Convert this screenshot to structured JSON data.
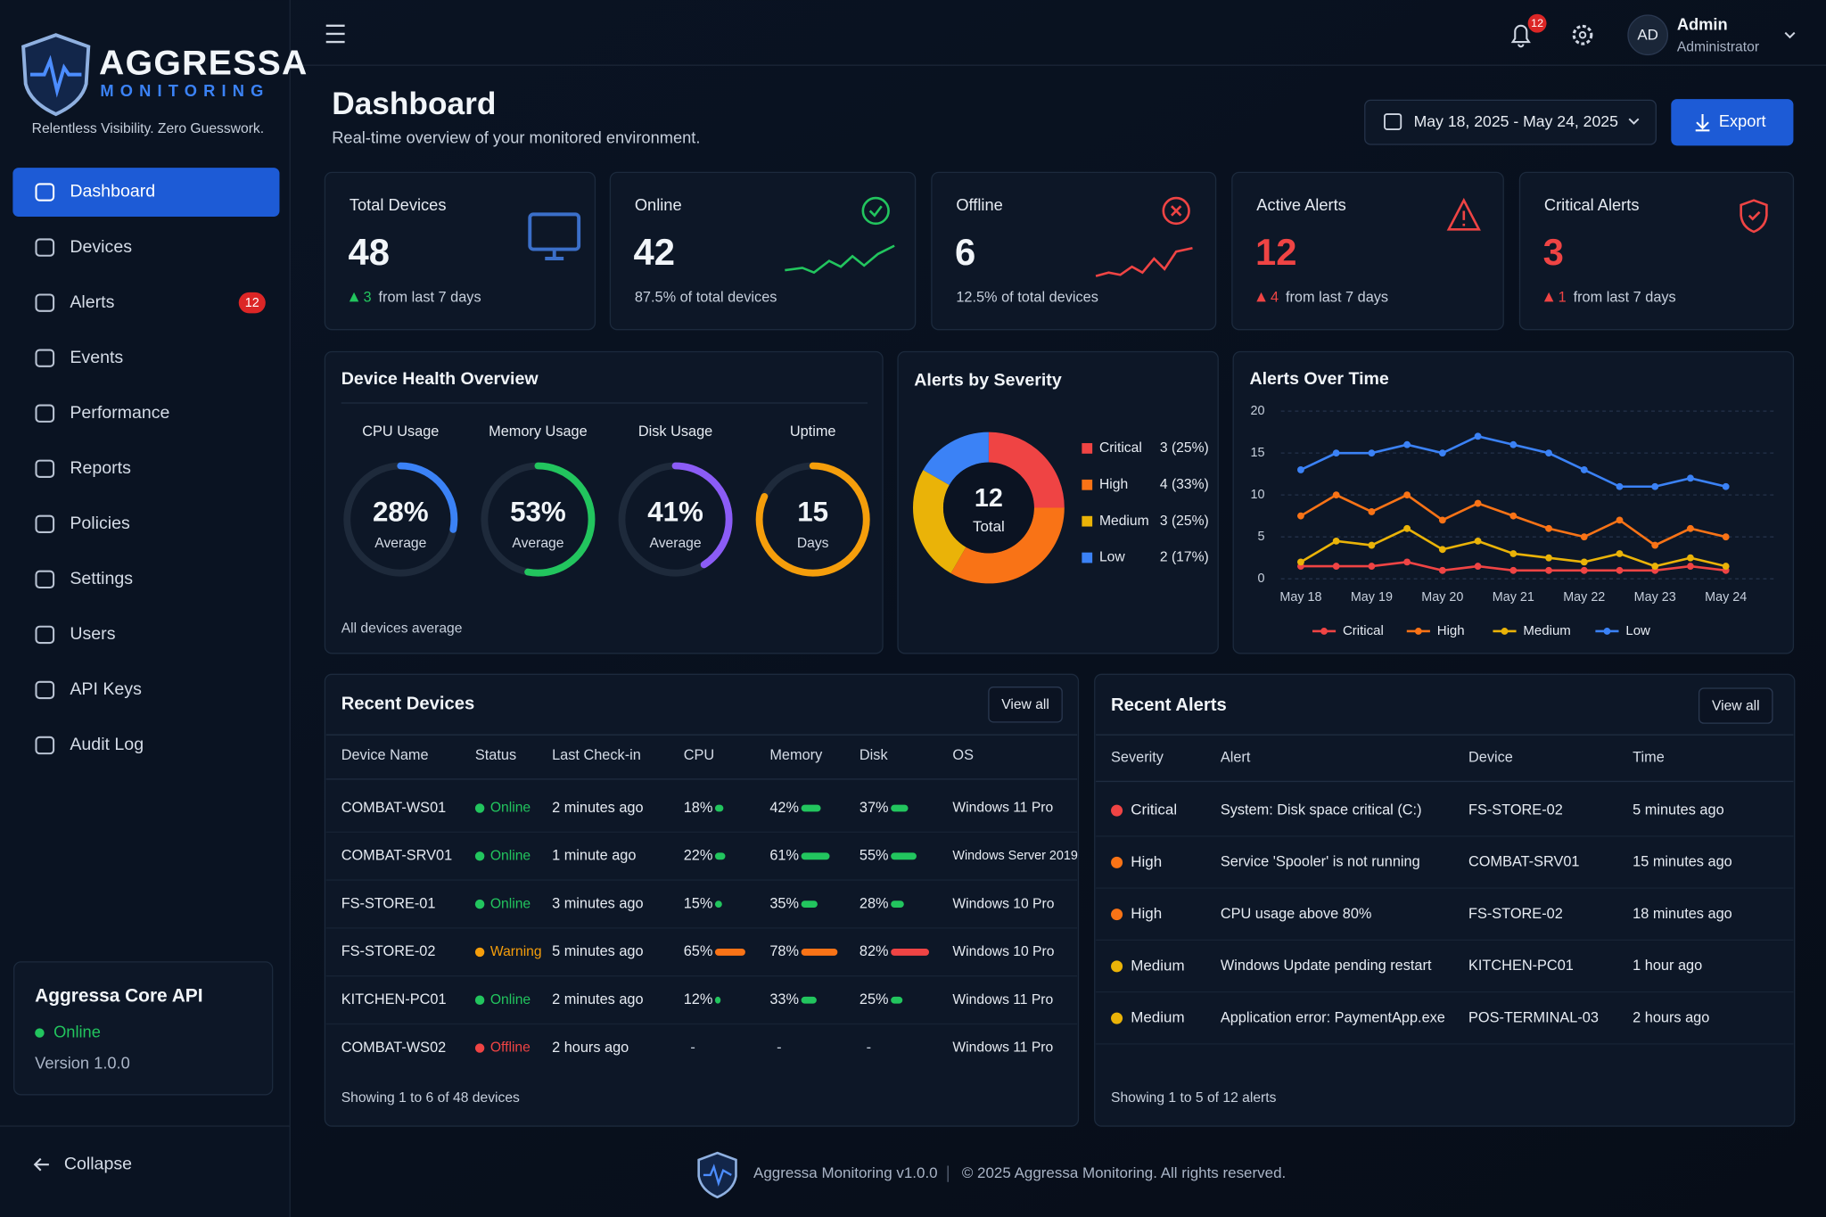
{
  "brand": {
    "name": "AGGRESSA",
    "sub": "MONITORING",
    "tagline": "Relentless Visibility. Zero Guesswork."
  },
  "nav": [
    {
      "label": "Dashboard",
      "active": true
    },
    {
      "label": "Devices"
    },
    {
      "label": "Alerts",
      "badge": 12
    },
    {
      "label": "Events"
    },
    {
      "label": "Performance"
    },
    {
      "label": "Reports"
    },
    {
      "label": "Policies"
    },
    {
      "label": "Settings"
    },
    {
      "label": "Users"
    },
    {
      "label": "API Keys"
    },
    {
      "label": "Audit Log"
    }
  ],
  "api": {
    "title": "Aggressa Core API",
    "status": "Online",
    "version": "Version 1.0.0"
  },
  "collapse": "Collapse",
  "header": {
    "notifications": 12,
    "user": {
      "initials": "AD",
      "name": "Admin",
      "role": "Administrator"
    }
  },
  "page": {
    "title": "Dashboard",
    "subtitle": "Real-time overview of your monitored environment.",
    "date_range": "May 18, 2025 - May 24, 2025",
    "export": "Export"
  },
  "stats": [
    {
      "label": "Total Devices",
      "value": 48,
      "delta": 3,
      "delta_color": "#22c55e",
      "note": "from last 7 days",
      "color": "#f1f5f9"
    },
    {
      "label": "Online",
      "value": 42,
      "note": "87.5% of total devices",
      "color": "#f1f5f9"
    },
    {
      "label": "Offline",
      "value": 6,
      "note": "12.5% of total devices",
      "color": "#f1f5f9"
    },
    {
      "label": "Active Alerts",
      "value": 12,
      "delta": 4,
      "delta_color": "#ef4444",
      "note": "from last 7 days",
      "color": "#ef4444"
    },
    {
      "label": "Critical Alerts",
      "value": 3,
      "delta": 1,
      "delta_color": "#ef4444",
      "note": "from last 7 days",
      "color": "#ef4444"
    }
  ],
  "health": {
    "title": "Device Health Overview",
    "footnote": "All devices average",
    "gauges": [
      {
        "label": "CPU Usage",
        "value": 28,
        "value_label": "28%",
        "unit": "Average",
        "color": "#3b82f6"
      },
      {
        "label": "Memory Usage",
        "value": 53,
        "value_label": "53%",
        "unit": "Average",
        "color": "#22c55e"
      },
      {
        "label": "Disk Usage",
        "value": 41,
        "value_label": "41%",
        "unit": "Average",
        "color": "#8b5cf6"
      },
      {
        "label": "Uptime",
        "value": 15,
        "unit": "Days",
        "color": "#f59e0b"
      }
    ]
  },
  "severity": {
    "title": "Alerts by Severity",
    "total": 12,
    "total_label": "Total",
    "slices": [
      {
        "name": "Critical",
        "value": 3,
        "value_label": "3 (25%)",
        "color": "#ef4444"
      },
      {
        "name": "High",
        "value": 4,
        "value_label": "4 (33%)",
        "color": "#f97316"
      },
      {
        "name": "Medium",
        "value": 3,
        "value_label": "3 (25%)",
        "color": "#eab308"
      },
      {
        "name": "Low",
        "value": 2,
        "value_label": "2 (17%)",
        "color": "#3b82f6"
      }
    ]
  },
  "chart": {
    "type": "line",
    "title": "Alerts Over Time",
    "categories": [
      "May 18",
      null,
      "May 19",
      null,
      "May 20",
      null,
      "May 21",
      null,
      "May 22",
      null,
      "May 23",
      null,
      "May 24"
    ],
    "series": [
      {
        "name": "Critical",
        "color": "#ef4444",
        "values": [
          1.5,
          1.5,
          1.5,
          2,
          1,
          1.5,
          1,
          1,
          1,
          1,
          1,
          1.5,
          1
        ]
      },
      {
        "name": "High",
        "color": "#f97316",
        "values": [
          7.5,
          10,
          8,
          10,
          7,
          9,
          7.5,
          6,
          5,
          7,
          4,
          6,
          5
        ]
      },
      {
        "name": "Medium",
        "color": "#eab308",
        "values": [
          2,
          4.5,
          4,
          6,
          3.5,
          4.5,
          3,
          2.5,
          2,
          3,
          1.5,
          2.5,
          1.5
        ]
      },
      {
        "name": "Low",
        "color": "#3b82f6",
        "values": [
          13,
          15,
          15,
          16,
          15,
          17,
          16,
          15,
          13,
          11,
          11,
          12,
          11
        ]
      }
    ],
    "ylim": [
      0,
      20
    ],
    "yticks": [
      0,
      5,
      10,
      15,
      20
    ],
    "grid": true
  },
  "devices": {
    "title": "Recent Devices",
    "view_all": "View all",
    "bar_color": "#22c55e",
    "columns": [
      "Device Name",
      "Status",
      "Last Check-in",
      "CPU",
      "Memory",
      "Disk",
      "OS"
    ],
    "rows": [
      {
        "name": "COMBAT-WS01",
        "status": "Online",
        "status_color": "#22c55e",
        "checkin": "2 minutes ago",
        "cpu": {
          "value": 18,
          "label": "18%"
        },
        "memory": {
          "value": 42,
          "label": "42%"
        },
        "disk": {
          "value": 37,
          "label": "37%"
        },
        "os": "Windows 11 Pro"
      },
      {
        "name": "COMBAT-SRV01",
        "status": "Online",
        "status_color": "#22c55e",
        "checkin": "1 minute ago",
        "cpu": {
          "value": 22,
          "label": "22%"
        },
        "memory": {
          "value": 61,
          "label": "61%"
        },
        "disk": {
          "value": 55,
          "label": "55%"
        },
        "os": "Windows Server 2019"
      },
      {
        "name": "FS-STORE-01",
        "status": "Online",
        "status_color": "#22c55e",
        "checkin": "3 minutes ago",
        "cpu": {
          "value": 15,
          "label": "15%"
        },
        "memory": {
          "value": 35,
          "label": "35%"
        },
        "disk": {
          "value": 28,
          "label": "28%"
        },
        "os": "Windows 10 Pro"
      },
      {
        "name": "FS-STORE-02",
        "status": "Warning",
        "status_color": "#f59e0b",
        "checkin": "5 minutes ago",
        "cpu": {
          "value": 65,
          "label": "65%",
          "color": "#f97316"
        },
        "memory": {
          "value": 78,
          "label": "78%",
          "color": "#f97316"
        },
        "disk": {
          "value": 82,
          "label": "82%",
          "color": "#ef4444"
        },
        "os": "Windows 10 Pro"
      },
      {
        "name": "KITCHEN-PC01",
        "status": "Online",
        "status_color": "#22c55e",
        "checkin": "2 minutes ago",
        "cpu": {
          "value": 12,
          "label": "12%"
        },
        "memory": {
          "value": 33,
          "label": "33%"
        },
        "disk": {
          "value": 25,
          "label": "25%"
        },
        "os": "Windows 11 Pro"
      },
      {
        "name": "COMBAT-WS02",
        "status": "Offline",
        "status_color": "#ef4444",
        "checkin": "2 hours ago",
        "cpu": {
          "value": null,
          "label": "-"
        },
        "memory": {
          "value": null,
          "label": "-"
        },
        "disk": {
          "value": null,
          "label": "-"
        },
        "os": "Windows 11 Pro"
      }
    ],
    "footer": "Showing 1 to 6 of 48 devices"
  },
  "alerts": {
    "title": "Recent Alerts",
    "view_all": "View all",
    "columns": [
      "Severity",
      "Alert",
      "Device",
      "Time"
    ],
    "rows": [
      {
        "severity": "Critical",
        "color": "#ef4444",
        "alert": "System: Disk space critical (C:)",
        "device": "FS-STORE-02",
        "time": "5 minutes ago"
      },
      {
        "severity": "High",
        "color": "#f97316",
        "alert": "Service 'Spooler' is not running",
        "device": "COMBAT-SRV01",
        "time": "15 minutes ago"
      },
      {
        "severity": "High",
        "color": "#f97316",
        "alert": "CPU usage above 80%",
        "device": "FS-STORE-02",
        "time": "18 minutes ago"
      },
      {
        "severity": "Medium",
        "color": "#eab308",
        "alert": "Windows Update pending restart",
        "device": "KITCHEN-PC01",
        "time": "1 hour ago"
      },
      {
        "severity": "Medium",
        "color": "#eab308",
        "alert": "Application error: PaymentApp.exe",
        "device": "POS-TERMINAL-03",
        "time": "2 hours ago"
      }
    ],
    "footer": "Showing 1 to 5 of 12 alerts"
  },
  "footer": {
    "product": "Aggressa Monitoring v1.0.0",
    "copyright": "© 2025 Aggressa Monitoring. All rights reserved."
  }
}
